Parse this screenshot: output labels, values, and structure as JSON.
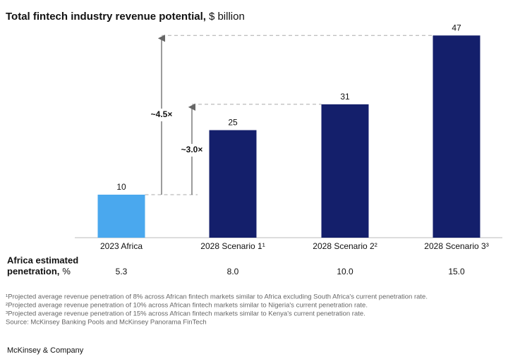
{
  "chart_data": {
    "type": "bar",
    "title": "Total fintech industry revenue potential,",
    "title_unit": "$ billion",
    "categories": [
      "2023 Africa",
      "2028 Scenario 1¹",
      "2028 Scenario 2²",
      "2028 Scenario 3³"
    ],
    "values": [
      10,
      25,
      31,
      47
    ],
    "colors": [
      "#4aa8ee",
      "#141f6b",
      "#141f6b",
      "#141f6b"
    ],
    "ylim": [
      0,
      50
    ],
    "annotations": [
      "~4.5×",
      "~3.0×"
    ],
    "penetration": {
      "label_bold": "Africa estimated penetration,",
      "label_unit": "%",
      "values": [
        5.3,
        8,
        10,
        15
      ],
      "value_labels": [
        "5.3",
        "8.0",
        "10.0",
        "15.0"
      ]
    },
    "footnotes": [
      "¹Projected average revenue penetration of 8% across African fintech markets similar to Africa excluding South Africa's current penetration rate.",
      "²Projected average revenue penetration of 10% across African fintech markets similar to Nigeria's current penetration rate.",
      "³Projected average revenue penetration of 15% across African fintech markets similar to Kenya's current penetration rate.",
      "Source: McKinsey Banking Pools and McKinsey Panorama FinTech"
    ],
    "brand": "McKinsey & Company"
  }
}
